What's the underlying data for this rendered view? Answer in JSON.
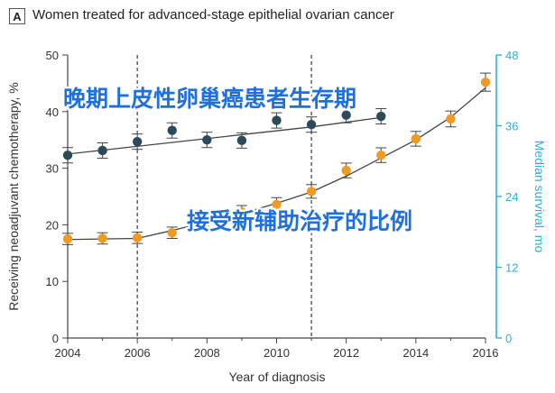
{
  "panel_letter": "A",
  "title": "Women treated for advanced-stage epithelial ovarian cancer",
  "overlay_texts": {
    "top": "晚期上皮性卵巢癌患者生存期",
    "middle": "接受新辅助治疗的比例"
  },
  "colors": {
    "left_series": "#ef9a23",
    "right_series": "#2c4a5a",
    "right_axis": "#29aee6",
    "left_axis": "#444444",
    "overlay_text": "#1e6fe0"
  },
  "chart_data": {
    "type": "line",
    "title": "Women treated for advanced-stage epithelial ovarian cancer",
    "xlabel": "Year of diagnosis",
    "ylabel_left": "Receiving neoadjuvant chemotherapy, %",
    "ylabel_right": "Median survival, mo",
    "xlim": [
      2004,
      2016
    ],
    "ylim_left": [
      0,
      50
    ],
    "ylim_right": [
      0,
      48
    ],
    "xticks": [
      2004,
      2006,
      2008,
      2010,
      2012,
      2014,
      2016
    ],
    "yticks_left": [
      0,
      10,
      20,
      30,
      40,
      50
    ],
    "yticks_right": [
      0,
      12,
      24,
      36,
      48
    ],
    "vertical_reference_lines": [
      2006,
      2011
    ],
    "grid": false,
    "series": [
      {
        "axis": "left",
        "x": [
          2004,
          2005,
          2006,
          2007,
          2008,
          2009,
          2010,
          2011,
          2012,
          2013,
          2014,
          2015,
          2016
        ],
        "y": [
          17.5,
          17.6,
          17.7,
          18.6,
          20.5,
          22.3,
          23.6,
          25.9,
          29.6,
          32.3,
          35.2,
          38.7,
          45.2
        ],
        "err": [
          1.0,
          1.0,
          1.0,
          1.0,
          1.1,
          1.1,
          1.2,
          1.2,
          1.3,
          1.3,
          1.3,
          1.4,
          1.6
        ],
        "trend_x": [
          2004,
          2006,
          2007,
          2008,
          2009,
          2010,
          2011,
          2012,
          2013,
          2014,
          2015,
          2016
        ],
        "trend_y": [
          17.4,
          17.6,
          19.0,
          20.5,
          22.0,
          23.8,
          25.8,
          28.6,
          31.8,
          35.0,
          39.0,
          44.2
        ]
      },
      {
        "axis": "right",
        "x": [
          2004,
          2005,
          2006,
          2007,
          2008,
          2009,
          2010,
          2011,
          2012,
          2013
        ],
        "y": [
          31.0,
          31.8,
          33.3,
          35.2,
          33.6,
          33.5,
          36.9,
          36.2,
          37.8,
          37.6
        ],
        "err": [
          1.3,
          1.3,
          1.3,
          1.3,
          1.3,
          1.3,
          1.3,
          1.3,
          1.3,
          1.3
        ],
        "trend_x": [
          2004,
          2011,
          2013
        ],
        "trend_y": [
          31.2,
          35.8,
          37.4
        ]
      }
    ]
  }
}
